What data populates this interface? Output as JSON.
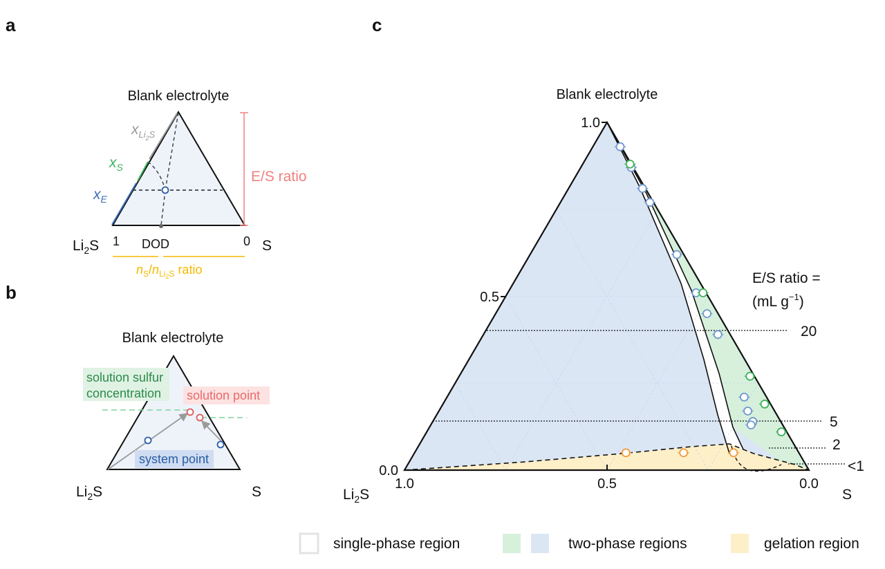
{
  "panel_a": {
    "letter": "a",
    "title": "Blank electrolyte",
    "x_li2s_label": "x",
    "x_li2s_sub": "Li",
    "x_li2s_sub2": "2",
    "x_li2s_sub3": "S",
    "x_s_label": "x",
    "x_s_sub": "S",
    "x_e_label": "x",
    "x_e_sub": "E",
    "es_ratio": "E/S ratio",
    "left_vertex": "Li",
    "left_vertex_sub": "2",
    "left_vertex_end": "S",
    "right_vertex": "S",
    "dod_left": "1",
    "dod_label": "DOD",
    "dod_right": "0",
    "ratio_n": "n",
    "ratio_ns_sub": "S",
    "ratio_slash": "/",
    "ratio_n2": "n",
    "ratio_sub_li": "Li",
    "ratio_sub_2": "2",
    "ratio_sub_s": "S",
    "ratio_word": " ratio",
    "colors": {
      "gray": "#9a9a9a",
      "green": "#3db35a",
      "blue": "#3a6fb5",
      "red": "#f08080",
      "yellow": "#f5b800"
    }
  },
  "panel_b": {
    "letter": "b",
    "title": "Blank electrolyte",
    "sulfur_conc_1": "solution sulfur",
    "sulfur_conc_2": "concentration",
    "solution_point": "solution point",
    "system_point": "system point",
    "left_vertex": "Li",
    "left_vertex_sub": "2",
    "left_vertex_end": "S",
    "right_vertex": "S"
  },
  "panel_c": {
    "letter": "c",
    "title": "Blank electrolyte",
    "y_ticks": [
      "1.0",
      "0.5",
      "0.0"
    ],
    "x_ticks": [
      "1.0",
      "0.5",
      "0.0"
    ],
    "left_vertex": "Li",
    "left_vertex_sub": "2",
    "left_vertex_end": "S",
    "right_vertex": "S",
    "es_header_1": "E/S ratio =",
    "es_header_2a": "(mL g",
    "es_header_2b": "−1",
    "es_header_2c": ")",
    "es_levels": [
      "20",
      "5",
      "2",
      "<1"
    ]
  },
  "legend": {
    "single": "single-phase region",
    "two": "two-phase regions",
    "gel": "gelation region",
    "colors": {
      "green": "#d6f0dc",
      "blue": "#dbe6f5",
      "yellow": "#fdefc8"
    }
  },
  "chart_data": {
    "type": "scatter",
    "ternary_axes": [
      "Li2S",
      "S",
      "electrolyte"
    ],
    "series": [
      {
        "name": "",
        "color": "#6f98d0",
        "points": [
          {
            "xs": 0.965,
            "y": 0.93
          },
          {
            "xs": 0.962,
            "y": 0.87
          },
          {
            "xs": 0.962,
            "y": 0.81
          },
          {
            "xs": 0.961,
            "y": 0.77
          },
          {
            "xs": 0.955,
            "y": 0.62
          },
          {
            "xs": 0.95,
            "y": 0.51
          },
          {
            "xs": 0.95,
            "y": 0.45
          },
          {
            "xs": 0.95,
            "y": 0.39
          },
          {
            "xs": 0.93,
            "y": 0.21
          },
          {
            "xs": 0.92,
            "y": 0.17
          },
          {
            "xs": 0.92,
            "y": 0.14
          },
          {
            "xs": 0.91,
            "y": 0.13
          }
        ]
      },
      {
        "name": "",
        "color": "#3db35a",
        "points": [
          {
            "xs": 0.975,
            "y": 0.88
          },
          {
            "xs": 0.985,
            "y": 0.51
          },
          {
            "xs": 0.985,
            "y": 0.27
          },
          {
            "xs": 0.982,
            "y": 0.19
          },
          {
            "xs": 0.985,
            "y": 0.11
          }
        ]
      },
      {
        "name": "",
        "color": "#f29a3a",
        "points": [
          {
            "xs": 0.55,
            "y": 0.05
          },
          {
            "xs": 0.7,
            "y": 0.05
          },
          {
            "xs": 0.83,
            "y": 0.05
          }
        ]
      }
    ],
    "y_range": [
      0.0,
      1.0
    ],
    "x_range": [
      1.0,
      0.0
    ]
  }
}
